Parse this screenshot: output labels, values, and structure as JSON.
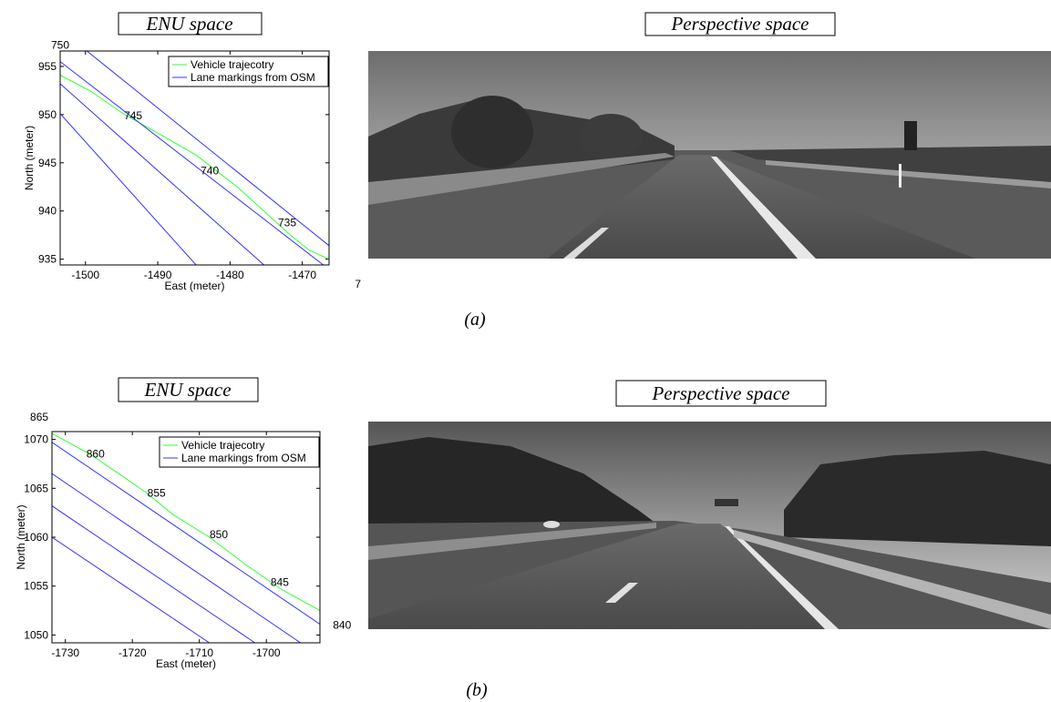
{
  "panels": [
    {
      "enu_label": "ENU space",
      "perspective_label": "Perspective space",
      "caption": "(a)"
    },
    {
      "enu_label": "ENU space",
      "perspective_label": "Perspective space",
      "caption": "(b)"
    }
  ],
  "chart_data": [
    {
      "type": "line",
      "x_label": "East (meter)",
      "y_label": "North (meter)",
      "xlim": [
        -1503.5,
        -1466.3
      ],
      "ylim": [
        934.4,
        956.6
      ],
      "xticks": [
        -1500,
        -1490,
        -1480,
        -1470
      ],
      "yticks": [
        935,
        940,
        945,
        950,
        955
      ],
      "legend": "upper right",
      "series": [
        {
          "name": "Vehicle trajecotry",
          "color": "#33ff33",
          "x": [
            -1503.5,
            -1499.2,
            -1494.8,
            -1489.1,
            -1484.7,
            -1479.0,
            -1474.6,
            -1471.5,
            -1469.0,
            -1466.3
          ],
          "values": [
            954.1,
            952.4,
            950.1,
            947.7,
            945.8,
            942.5,
            939.5,
            937.4,
            935.9,
            935.0
          ]
        },
        {
          "name": "Lane markings from OSM",
          "color": "#3333ff",
          "x": [
            -1499.8,
            -1466.3,
            null,
            -1503.5,
            -1467.1,
            null,
            -1503.5,
            -1475.3,
            null,
            -1503.5,
            -1484.7
          ],
          "values": [
            956.6,
            936.4,
            null,
            955.5,
            934.4,
            null,
            953.2,
            934.4,
            null,
            950.1,
            934.4
          ]
        }
      ],
      "annotations": [
        {
          "text": "750",
          "x": -1503.5,
          "y": 957.2
        },
        {
          "text": "745",
          "x": -1493.4,
          "y": 949.9
        },
        {
          "text": "740",
          "x": -1482.8,
          "y": 944.2
        },
        {
          "text": "735",
          "x": -1472.1,
          "y": 938.8
        },
        {
          "text": "7",
          "x": -1462.3,
          "y": 932.4
        }
      ]
    },
    {
      "type": "line",
      "x_label": "East (meter)",
      "y_label": "North (meter)",
      "xlim": [
        -1732,
        -1692
      ],
      "ylim": [
        1049.2,
        1070.8
      ],
      "xticks": [
        -1730,
        -1720,
        -1710,
        -1700
      ],
      "yticks": [
        1050,
        1055,
        1060,
        1065,
        1070
      ],
      "legend": "upper right",
      "series": [
        {
          "name": "Vehicle trajecotry",
          "color": "#33ff33",
          "x": [
            -1732,
            -1726.1,
            -1718.0,
            -1713.9,
            -1708.5,
            -1703.1,
            -1697.6,
            -1692
          ],
          "values": [
            1070.6,
            1068.4,
            1064.6,
            1062.3,
            1060.0,
            1057.2,
            1054.6,
            1052.5
          ]
        },
        {
          "name": "Lane markings from OSM",
          "color": "#3333ff",
          "x": [
            -1732,
            -1692,
            null,
            -1732,
            -1694.9,
            null,
            -1732,
            -1701.7,
            null,
            -1732,
            -1708.5
          ],
          "values": [
            1069.7,
            1051.1,
            null,
            1066.5,
            1049.2,
            null,
            1063.2,
            1049.2,
            null,
            1060.0,
            1049.2
          ]
        }
      ],
      "annotations": [
        {
          "text": "865",
          "x": -1733.9,
          "y": 1072.3
        },
        {
          "text": "860",
          "x": -1725.5,
          "y": 1068.5
        },
        {
          "text": "855",
          "x": -1716.4,
          "y": 1064.5
        },
        {
          "text": "850",
          "x": -1707.1,
          "y": 1060.3
        },
        {
          "text": "845",
          "x": -1698.0,
          "y": 1055.4
        },
        {
          "text": "840",
          "x": -1688.7,
          "y": 1051.0
        }
      ]
    }
  ]
}
